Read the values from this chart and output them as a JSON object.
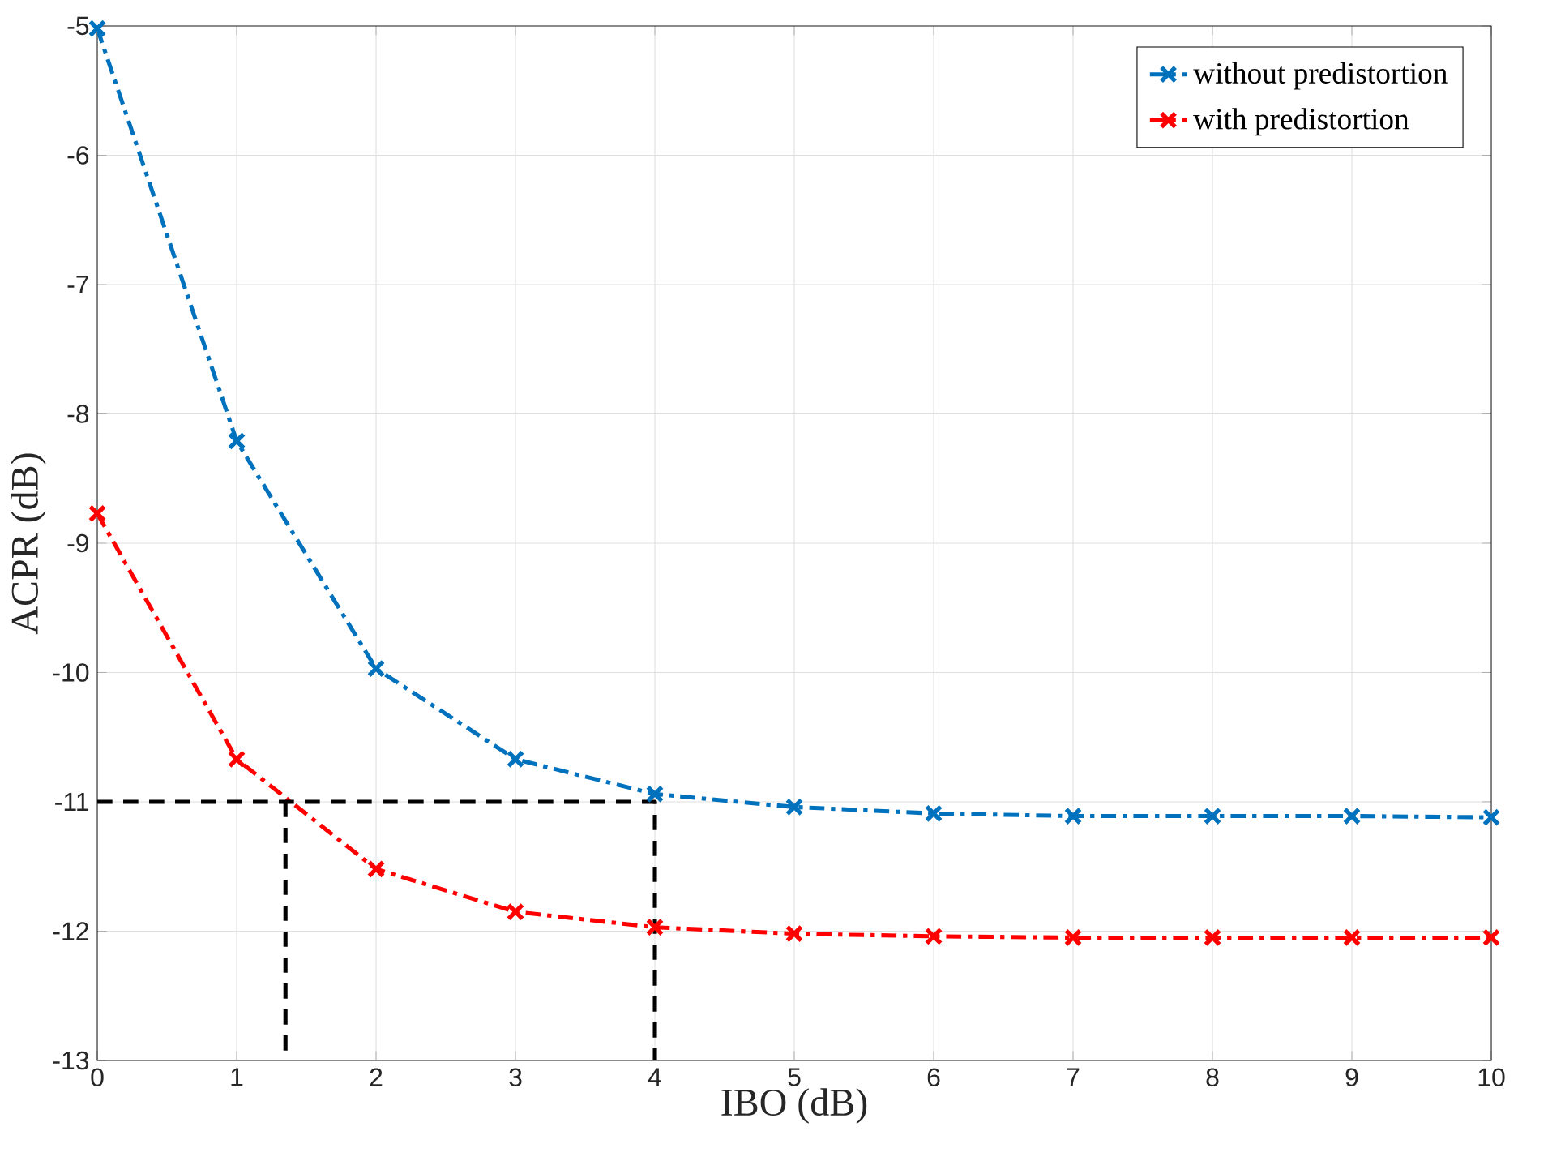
{
  "chart_data": {
    "type": "line",
    "xlabel": "IBO (dB)",
    "ylabel": "ACPR (dB)",
    "x": [
      0,
      1,
      2,
      3,
      4,
      5,
      6,
      7,
      8,
      9,
      10
    ],
    "series": [
      {
        "name": "without predistortion",
        "color": "#0072bd",
        "marker": "cross",
        "line_style": "dashdot",
        "values": [
          -5.02,
          -8.21,
          -9.97,
          -10.67,
          -10.94,
          -11.04,
          -11.09,
          -11.11,
          -11.11,
          -11.11,
          -11.12
        ]
      },
      {
        "name": "with predistortion",
        "color": "#ff0000",
        "marker": "cross",
        "line_style": "dashdot",
        "values": [
          -8.77,
          -10.67,
          -11.52,
          -11.85,
          -11.97,
          -12.02,
          -12.04,
          -12.05,
          -12.05,
          -12.05,
          -12.05
        ]
      },
      {
        "color": "#000000",
        "marker": "none",
        "line_style": "dashed",
        "x": [
          0,
          4,
          4
        ],
        "values": [
          -11,
          -11,
          -13
        ]
      },
      {
        "color": "#000000",
        "marker": "none",
        "line_style": "dashed",
        "x": [
          1.35,
          1.35
        ],
        "values": [
          -11,
          -13
        ]
      }
    ],
    "xlim": [
      0,
      10
    ],
    "ylim": [
      -13,
      -5
    ],
    "xticks": [
      0,
      1,
      2,
      3,
      4,
      5,
      6,
      7,
      8,
      9,
      10
    ],
    "yticks": [
      -13,
      -12,
      -11,
      -10,
      -9,
      -8,
      -7,
      -6,
      -5
    ],
    "grid": true,
    "legend": "top right"
  }
}
